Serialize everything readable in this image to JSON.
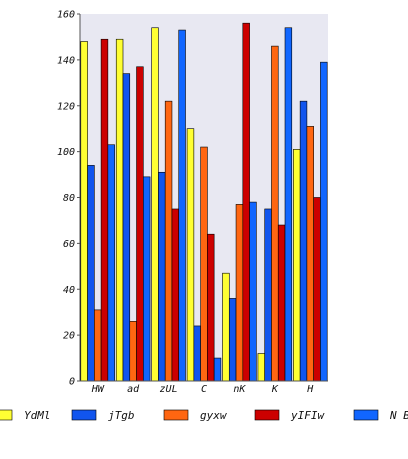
{
  "chart_data": {
    "type": "bar",
    "categories": [
      "HW",
      "ad",
      "zUL",
      "C",
      "nK",
      "K",
      "H"
    ],
    "ylim": [
      0,
      160
    ],
    "yticks": [
      0,
      20,
      40,
      60,
      80,
      100,
      120,
      140,
      160
    ],
    "grid": false,
    "legend_position": "bottom",
    "series": [
      {
        "name": "YdMl",
        "color": "#ffff33",
        "values": [
          148,
          149,
          154,
          110,
          47,
          12,
          101
        ]
      },
      {
        "name": "jTgb",
        "color": "#1155ee",
        "values": [
          94,
          134,
          91,
          24,
          36,
          75,
          122
        ]
      },
      {
        "name": "gyxw",
        "color": "#ff6611",
        "values": [
          31,
          26,
          122,
          102,
          77,
          146,
          111
        ]
      },
      {
        "name": "yIFIw",
        "color": "#cc0000",
        "values": [
          149,
          137,
          75,
          64,
          156,
          68,
          80
        ]
      },
      {
        "name": "N B",
        "color": "#1166ff",
        "values": [
          103,
          89,
          153,
          10,
          78,
          154,
          139
        ]
      }
    ]
  }
}
